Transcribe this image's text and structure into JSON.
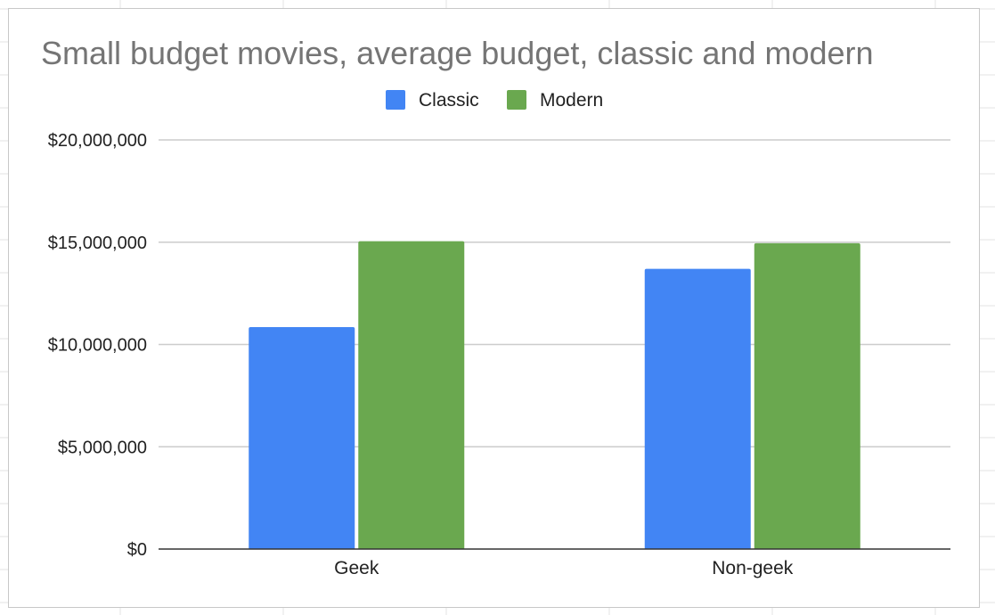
{
  "chart_data": {
    "type": "bar",
    "title": "Small budget movies, average budget, classic and modern",
    "categories": [
      "Geek",
      "Non-geek"
    ],
    "series": [
      {
        "name": "Classic",
        "color": "#4285f4",
        "values": [
          10850000,
          13700000
        ]
      },
      {
        "name": "Modern",
        "color": "#6aa84f",
        "values": [
          15050000,
          14950000
        ]
      }
    ],
    "xlabel": "",
    "ylabel": "",
    "ylim": [
      0,
      20000000
    ],
    "yticks": [
      0,
      5000000,
      10000000,
      15000000,
      20000000
    ],
    "ytick_labels": [
      "$0",
      "$5,000,000",
      "$10,000,000",
      "$15,000,000",
      "$20,000,000"
    ],
    "legend_position": "top",
    "grid": true
  }
}
